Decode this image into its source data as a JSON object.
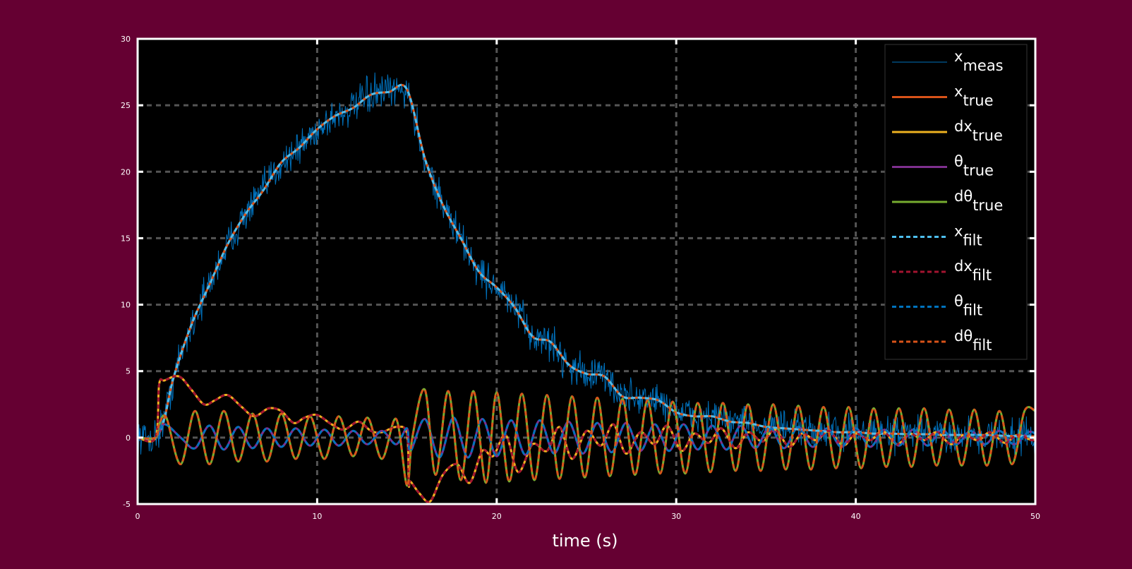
{
  "page": {
    "background": "#650032"
  },
  "chart_data": {
    "type": "line",
    "title": "",
    "xlabel": "time (s)",
    "ylabel": "",
    "xlim": [
      0,
      50
    ],
    "ylim": [
      -5,
      30
    ],
    "xticks": [
      0,
      10,
      20,
      30,
      40,
      50
    ],
    "yticks": [
      -5,
      0,
      5,
      10,
      15,
      20,
      25,
      30
    ],
    "xtick_labels": [
      "0",
      "10",
      "20",
      "30",
      "40",
      "50"
    ],
    "ytick_labels": [
      "-5",
      "0",
      "5",
      "10",
      "15",
      "20",
      "25",
      "30"
    ],
    "grid": true,
    "legend_position": "top-right",
    "plot_background": "#000000",
    "axis_color": "#ffffff",
    "grid_color": "#555555",
    "legend": [
      {
        "base": "x",
        "sub": "meas",
        "color": "#0072bd",
        "style": "solid",
        "width": 1
      },
      {
        "base": "x",
        "sub": "true",
        "color": "#d95319",
        "style": "solid",
        "width": 3
      },
      {
        "base": "dx",
        "sub": "true",
        "color": "#edb120",
        "style": "solid",
        "width": 3
      },
      {
        "base": "θ",
        "sub": "true",
        "color": "#7e2f8e",
        "style": "solid",
        "width": 3
      },
      {
        "base": "dθ",
        "sub": "true",
        "color": "#77ac30",
        "style": "solid",
        "width": 3
      },
      {
        "base": "x",
        "sub": "filt",
        "color": "#4dbeee",
        "style": "dashed",
        "width": 3
      },
      {
        "base": "dx",
        "sub": "filt",
        "color": "#a2142f",
        "style": "dashed",
        "width": 3
      },
      {
        "base": "θ",
        "sub": "filt",
        "color": "#0072bd",
        "style": "dashed",
        "width": 3
      },
      {
        "base": "dθ",
        "sub": "filt",
        "color": "#d95319",
        "style": "dashed",
        "width": 3
      }
    ],
    "series": [
      {
        "name": "x_true",
        "color": "#d95319",
        "x": [
          0,
          1,
          1.5,
          2,
          3,
          4,
          5,
          6,
          7,
          8,
          9,
          10,
          11,
          12,
          13,
          14,
          15,
          16,
          17,
          18,
          19,
          20,
          21,
          22,
          23,
          24,
          25,
          26,
          27,
          28,
          29,
          30,
          31,
          32,
          33,
          34,
          35,
          36,
          37,
          38,
          39,
          40,
          41,
          42,
          43,
          44,
          45,
          46,
          47,
          48,
          49,
          50
        ],
        "values": [
          0,
          0,
          1.5,
          4.5,
          8.5,
          11.5,
          14.5,
          16.8,
          18.6,
          20.7,
          21.8,
          23.2,
          24.2,
          24.8,
          25.8,
          26.0,
          26.2,
          21.0,
          17.5,
          15.0,
          12.5,
          11.3,
          9.8,
          7.6,
          7.2,
          5.5,
          4.8,
          4.6,
          3.1,
          3.0,
          2.8,
          1.9,
          1.6,
          1.6,
          1.2,
          1.1,
          0.8,
          0.7,
          0.6,
          0.5,
          0.4,
          0.4,
          0.3,
          0.3,
          0.25,
          0.25,
          0.2,
          0.2,
          0.2,
          0.15,
          0.1,
          0.1
        ]
      },
      {
        "name": "dx_true",
        "color": "#edb120",
        "x": [
          0,
          1.0,
          1.2,
          1.5,
          2.3,
          3.0,
          3.7,
          4.3,
          5.0,
          5.8,
          6.5,
          7.3,
          8.0,
          8.7,
          9.3,
          10.0,
          10.8,
          11.5,
          12.3,
          13.0,
          13.6,
          14.4,
          15.0,
          15.1,
          15.2,
          15.7,
          16.3,
          17.0,
          17.8,
          18.5,
          19.2,
          19.8,
          20.5,
          21.2,
          22.0,
          22.8,
          23.5,
          24.2,
          25.0,
          25.8,
          26.5,
          27.2,
          28.0,
          28.8,
          29.5,
          30.3,
          31.0,
          31.8,
          32.5,
          33.3,
          34.0,
          34.8,
          35.5,
          36.3,
          37.0,
          37.8,
          38.5,
          39.3,
          40.0,
          40.8,
          41.5,
          42.3,
          43.0,
          43.8,
          44.5,
          45.3,
          46.0,
          46.8,
          47.5,
          48.3,
          49.0,
          49.8,
          50.0
        ],
        "values": [
          0,
          0,
          4.0,
          4.3,
          4.6,
          3.6,
          2.5,
          2.8,
          3.2,
          2.3,
          1.6,
          2.2,
          2.0,
          1.1,
          1.5,
          1.7,
          1.0,
          0.6,
          1.2,
          0.5,
          0.4,
          0.8,
          0.3,
          -3.5,
          -3.3,
          -4.2,
          -4.8,
          -2.8,
          -2.0,
          -3.4,
          -1.0,
          -1.4,
          0.2,
          -2.6,
          -0.5,
          -1.0,
          0.8,
          -1.6,
          0.5,
          -0.6,
          1.0,
          -1.2,
          0.4,
          -0.5,
          0.9,
          -1.0,
          0.3,
          -0.4,
          0.7,
          -0.8,
          0.4,
          -0.3,
          0.6,
          -0.7,
          0.3,
          -0.2,
          0.5,
          -0.6,
          0.3,
          -0.2,
          0.5,
          -0.5,
          0.3,
          -0.2,
          0.4,
          -0.5,
          0.2,
          -0.2,
          0.4,
          -0.4,
          0.2,
          -0.2,
          0
        ]
      },
      {
        "name": "theta_true",
        "color": "#7e2f8e",
        "x": [
          0,
          1.0,
          1.5,
          2.4,
          3.2,
          4.0,
          4.8,
          5.6,
          6.4,
          7.2,
          8.0,
          8.8,
          9.6,
          10.4,
          11.2,
          12.0,
          12.8,
          13.6,
          14.4,
          15.0,
          15.2,
          16.0,
          16.8,
          17.6,
          18.4,
          19.2,
          20.0,
          20.8,
          21.6,
          22.4,
          23.2,
          24.0,
          24.8,
          25.6,
          26.4,
          27.2,
          28.0,
          28.8,
          29.6,
          30.4,
          31.2,
          32.0,
          32.8,
          33.6,
          34.4,
          35.2,
          36.0,
          36.8,
          37.6,
          38.4,
          39.2,
          40.0,
          40.8,
          41.6,
          42.4,
          43.2,
          44.0,
          44.8,
          45.6,
          46.4,
          47.2,
          48.0,
          48.8,
          49.6,
          50.0
        ],
        "values": [
          0,
          0,
          1.0,
          0.0,
          -0.8,
          0.9,
          -0.9,
          0.8,
          -0.8,
          0.7,
          -0.7,
          0.7,
          -0.6,
          0.6,
          -0.6,
          0.5,
          -0.5,
          0.5,
          -0.5,
          0.7,
          -1.0,
          1.4,
          -1.5,
          1.5,
          -1.5,
          1.4,
          -1.4,
          1.3,
          -1.3,
          1.3,
          -1.2,
          1.2,
          -1.2,
          1.1,
          -1.1,
          1.1,
          -1.0,
          1.0,
          -1.0,
          1.0,
          -0.9,
          0.9,
          -0.9,
          0.9,
          -0.8,
          0.8,
          -0.8,
          0.8,
          -0.7,
          0.7,
          -0.7,
          0.7,
          -0.7,
          0.6,
          -0.6,
          0.6,
          -0.6,
          0.6,
          -0.5,
          0.5,
          -0.5,
          0.5,
          -0.5,
          0.4,
          0.3
        ]
      },
      {
        "name": "dtheta_true",
        "color": "#77ac30",
        "x": [
          0,
          1.0,
          1.2,
          1.6,
          2.4,
          3.2,
          4.0,
          4.8,
          5.6,
          6.4,
          7.2,
          8.0,
          8.8,
          9.6,
          10.4,
          11.2,
          12.0,
          12.8,
          13.6,
          14.4,
          15.0,
          15.3,
          16.0,
          16.6,
          17.3,
          18.0,
          18.7,
          19.4,
          20.0,
          20.7,
          21.4,
          22.1,
          22.8,
          23.5,
          24.2,
          24.9,
          25.6,
          26.3,
          27.0,
          27.7,
          28.4,
          29.1,
          29.8,
          30.5,
          31.2,
          31.9,
          32.6,
          33.3,
          34.0,
          34.7,
          35.4,
          36.1,
          36.8,
          37.5,
          38.2,
          38.9,
          39.6,
          40.3,
          41.0,
          41.7,
          42.4,
          43.1,
          43.8,
          44.5,
          45.2,
          45.9,
          46.6,
          47.3,
          48.0,
          48.7,
          49.4,
          50.0
        ],
        "values": [
          0,
          0,
          1.0,
          1.5,
          -2.0,
          2.0,
          -2.0,
          2.0,
          -1.8,
          1.8,
          -1.8,
          1.8,
          -1.6,
          1.6,
          -1.6,
          1.6,
          -1.4,
          1.5,
          -1.6,
          1.4,
          -3.6,
          0.0,
          3.6,
          -2.8,
          3.5,
          -3.2,
          3.5,
          -3.4,
          3.4,
          -3.3,
          3.3,
          -3.2,
          3.2,
          -3.1,
          3.1,
          -3.0,
          3.0,
          -2.9,
          2.9,
          -2.8,
          2.8,
          -2.7,
          2.7,
          -2.7,
          2.6,
          -2.6,
          2.6,
          -2.5,
          2.5,
          -2.5,
          2.5,
          -2.4,
          2.4,
          -2.4,
          2.3,
          -2.3,
          2.3,
          -2.3,
          2.2,
          -2.2,
          2.2,
          -2.2,
          2.2,
          -2.1,
          2.1,
          -2.1,
          2.1,
          -2.1,
          2.0,
          -2.0,
          2.0,
          2.0
        ]
      }
    ],
    "measurement_noise": {
      "name": "x_meas",
      "color": "#0072bd",
      "base_series": "x_true",
      "amplitude": 1.3,
      "samples": 1400
    },
    "filter_overlays": [
      {
        "name": "x_filt",
        "of": "x_true",
        "color": "#4dbeee"
      },
      {
        "name": "dx_filt",
        "of": "dx_true",
        "color": "#a2142f"
      },
      {
        "name": "theta_filt",
        "of": "theta_true",
        "color": "#0072bd"
      },
      {
        "name": "dtheta_filt",
        "of": "dtheta_true",
        "color": "#d95319"
      }
    ]
  }
}
